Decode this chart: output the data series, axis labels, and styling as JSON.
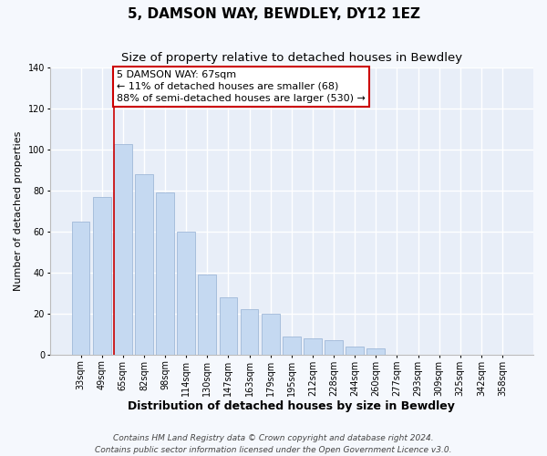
{
  "title": "5, DAMSON WAY, BEWDLEY, DY12 1EZ",
  "subtitle": "Size of property relative to detached houses in Bewdley",
  "xlabel": "Distribution of detached houses by size in Bewdley",
  "ylabel": "Number of detached properties",
  "bar_labels": [
    "33sqm",
    "49sqm",
    "65sqm",
    "82sqm",
    "98sqm",
    "114sqm",
    "130sqm",
    "147sqm",
    "163sqm",
    "179sqm",
    "195sqm",
    "212sqm",
    "228sqm",
    "244sqm",
    "260sqm",
    "277sqm",
    "293sqm",
    "309sqm",
    "325sqm",
    "342sqm",
    "358sqm"
  ],
  "bar_heights": [
    65,
    77,
    103,
    88,
    79,
    60,
    39,
    28,
    22,
    20,
    9,
    8,
    7,
    4,
    3,
    0,
    0,
    0,
    0,
    0,
    0
  ],
  "bar_color": "#c5d9f1",
  "bar_edge_color": "#a0b8d8",
  "highlight_bar_index": 2,
  "highlight_color": "#cc0000",
  "ylim": [
    0,
    140
  ],
  "yticks": [
    0,
    20,
    40,
    60,
    80,
    100,
    120,
    140
  ],
  "annotation_title": "5 DAMSON WAY: 67sqm",
  "annotation_line1": "← 11% of detached houses are smaller (68)",
  "annotation_line2": "88% of semi-detached houses are larger (530) →",
  "footnote1": "Contains HM Land Registry data © Crown copyright and database right 2024.",
  "footnote2": "Contains public sector information licensed under the Open Government Licence v3.0.",
  "title_fontsize": 11,
  "subtitle_fontsize": 9.5,
  "xlabel_fontsize": 9,
  "ylabel_fontsize": 8,
  "tick_fontsize": 7,
  "annotation_fontsize": 8,
  "footnote_fontsize": 6.5,
  "plot_bg_color": "#e8eef8",
  "fig_bg_color": "#f5f8fd"
}
